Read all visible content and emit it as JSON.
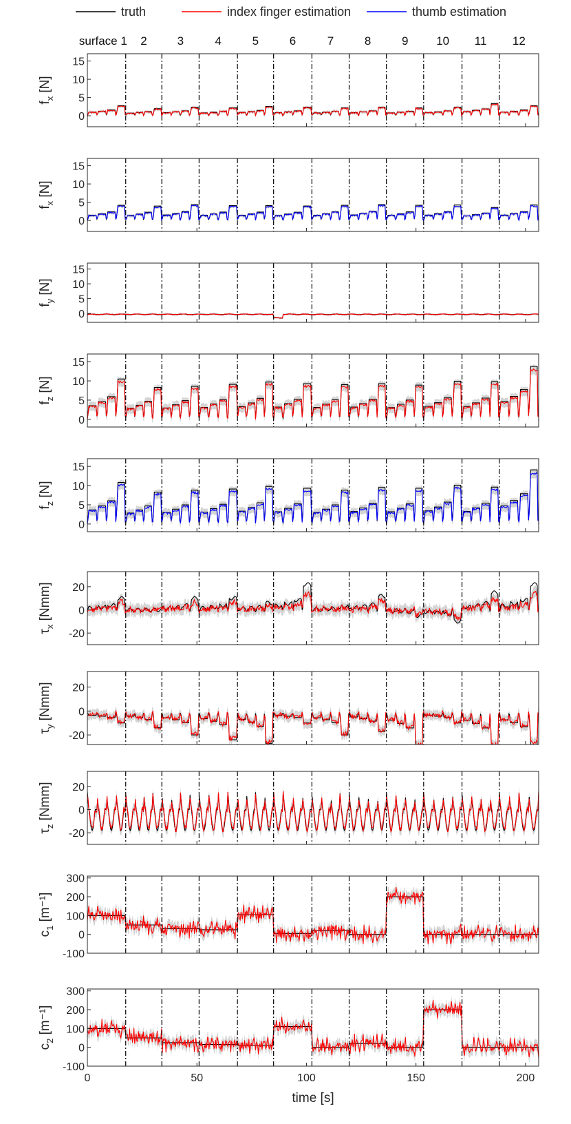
{
  "chart_data": {
    "type": "line",
    "legend": {
      "placement": "top",
      "entries": [
        {
          "label": "truth",
          "color": "#000000"
        },
        {
          "label": "index finger estimation",
          "color": "#ff0000"
        },
        {
          "label": "thumb estimation",
          "color": "#0000ff"
        }
      ]
    },
    "surface_labels": [
      "surface 1",
      "2",
      "3",
      "4",
      "5",
      "6",
      "7",
      "8",
      "9",
      "10",
      "11",
      "12"
    ],
    "surface_boundaries": [
      17.5,
      34,
      51,
      68.5,
      85,
      102.5,
      119.5,
      136.5,
      153.5,
      171,
      188
    ],
    "xlabel": "time [s]",
    "xlim": [
      0,
      206
    ],
    "xticks": [
      0,
      50,
      100,
      150,
      200
    ],
    "panels": [
      {
        "ylabel_main": "f",
        "ylabel_sub": "x",
        "ylabel_unit": " [N]",
        "ylim": [
          -3,
          17
        ],
        "yticks": [
          0,
          5,
          10,
          15
        ],
        "series": [
          "truth",
          "index finger estimation"
        ],
        "kind": "fx",
        "level_per_surface": [
          2.6,
          1.8,
          2.2,
          2.0,
          2.4,
          2.2,
          2.0,
          2.2,
          2.0,
          2.2,
          3.2,
          2.6
        ]
      },
      {
        "ylabel_main": "f",
        "ylabel_sub": "x",
        "ylabel_unit": " [N]",
        "ylim": [
          -3,
          17
        ],
        "yticks": [
          0,
          5,
          10,
          15
        ],
        "series": [
          "truth",
          "thumb estimation"
        ],
        "kind": "fx",
        "level_per_surface": [
          4.0,
          3.8,
          4.2,
          3.9,
          3.9,
          3.8,
          4.0,
          4.2,
          4.0,
          4.1,
          3.4,
          4.1
        ]
      },
      {
        "ylabel_main": "f",
        "ylabel_sub": "y",
        "ylabel_unit": " [N]",
        "ylim": [
          -3,
          17
        ],
        "yticks": [
          0,
          5,
          10,
          15
        ],
        "series": [
          "truth",
          "index finger estimation"
        ],
        "kind": "fy"
      },
      {
        "ylabel_main": "f",
        "ylabel_sub": "z",
        "ylabel_unit": " [N]",
        "ylim": [
          -2,
          17
        ],
        "yticks": [
          0,
          5,
          10,
          15
        ],
        "series": [
          "truth",
          "index finger estimation"
        ],
        "kind": "fz",
        "level_per_surface": [
          10.2,
          8.0,
          8.3,
          8.8,
          9.4,
          9.0,
          8.7,
          9.0,
          8.6,
          9.6,
          9.5,
          13.5
        ]
      },
      {
        "ylabel_main": "f",
        "ylabel_sub": "z",
        "ylabel_unit": " [N]",
        "ylim": [
          -2,
          17
        ],
        "yticks": [
          0,
          5,
          10,
          15
        ],
        "series": [
          "truth",
          "thumb estimation"
        ],
        "kind": "fz",
        "level_per_surface": [
          10.5,
          8.0,
          8.5,
          8.8,
          9.5,
          9.0,
          8.5,
          9.2,
          9.0,
          9.8,
          9.3,
          13.8
        ]
      },
      {
        "ylabel_main": "τ",
        "ylabel_sub": "x",
        "ylabel_unit": " [Nmm]",
        "ylim": [
          -30,
          33
        ],
        "yticks": [
          -20,
          0,
          20
        ],
        "series": [
          "truth",
          "index finger estimation"
        ],
        "kind": "tx"
      },
      {
        "ylabel_main": "τ",
        "ylabel_sub": "y",
        "ylabel_unit": " [Nmm]",
        "ylim": [
          -28,
          33
        ],
        "yticks": [
          -20,
          0,
          20
        ],
        "series": [
          "truth",
          "index finger estimation"
        ],
        "kind": "ty"
      },
      {
        "ylabel_main": "τ",
        "ylabel_sub": "z",
        "ylabel_unit": " [Nmm]",
        "ylim": [
          -30,
          33
        ],
        "yticks": [
          -20,
          0,
          20
        ],
        "series": [
          "truth",
          "index finger estimation"
        ],
        "kind": "tz"
      },
      {
        "ylabel_main": "c",
        "ylabel_sub": "1",
        "ylabel_unit": " [m⁻¹]",
        "ylim": [
          -100,
          310
        ],
        "yticks": [
          -100,
          0,
          100,
          200,
          300
        ],
        "series": [
          "truth",
          "index finger estimation"
        ],
        "kind": "c",
        "truth_per_surface": [
          100,
          50,
          30,
          25,
          105,
          5,
          20,
          0,
          200,
          0,
          0,
          0
        ]
      },
      {
        "ylabel_main": "c",
        "ylabel_sub": "2",
        "ylabel_unit": " [m⁻¹]",
        "ylim": [
          -100,
          310
        ],
        "yticks": [
          -100,
          0,
          100,
          200,
          300
        ],
        "series": [
          "truth",
          "index finger estimation"
        ],
        "kind": "c",
        "truth_per_surface": [
          100,
          50,
          25,
          15,
          10,
          110,
          0,
          20,
          0,
          200,
          0,
          0
        ]
      }
    ]
  }
}
